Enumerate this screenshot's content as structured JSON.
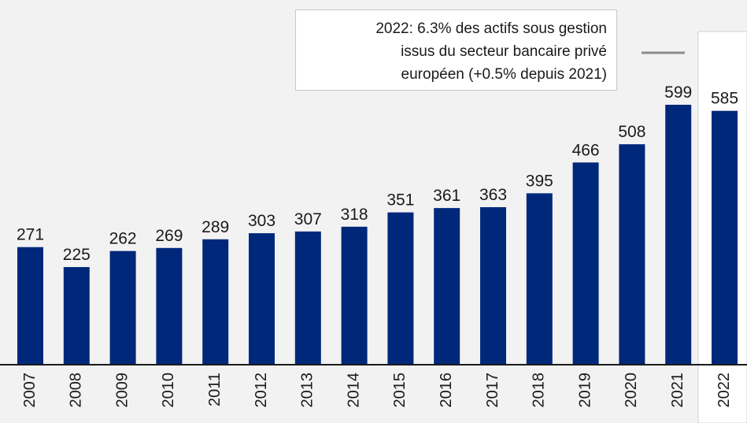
{
  "chart_data": {
    "type": "bar",
    "annotation_lines": [
      "2022: 6.3% des actifs sous gestion",
      "issus du secteur bancaire privé",
      "européen (+0.5% depuis 2021)"
    ],
    "categories": [
      "2007",
      "2008",
      "2009",
      "2010",
      "2011",
      "2012",
      "2013",
      "2014",
      "2015",
      "2016",
      "2017",
      "2018",
      "2019",
      "2020",
      "2021",
      "2022"
    ],
    "values": [
      271,
      225,
      262,
      269,
      289,
      303,
      307,
      318,
      351,
      361,
      363,
      395,
      466,
      508,
      599,
      585
    ],
    "color": "#00287a"
  }
}
